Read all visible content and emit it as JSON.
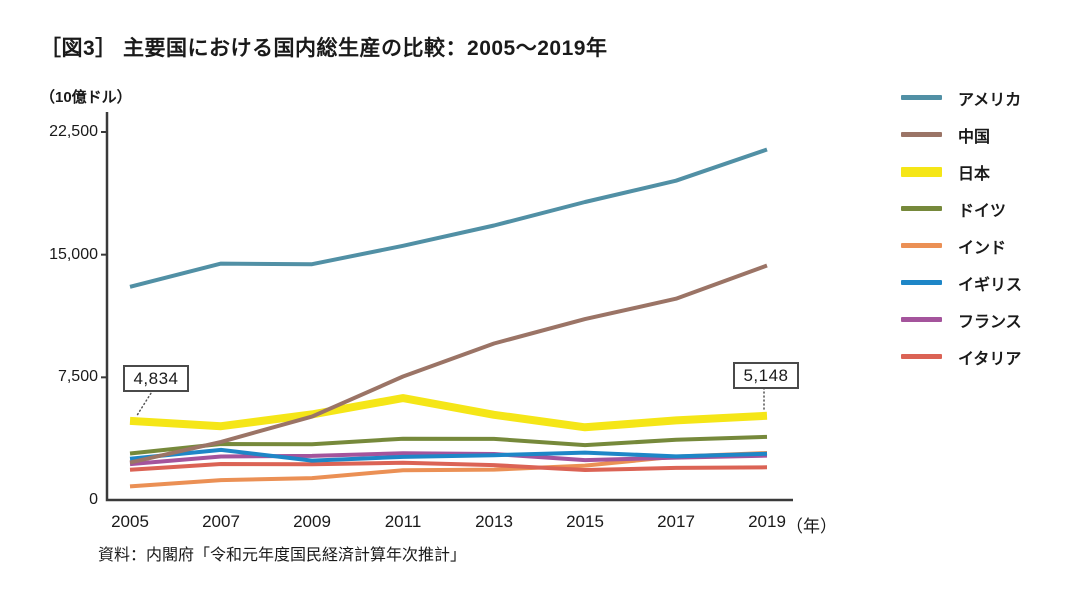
{
  "title": "［図3］ 主要国における国内総生産の比較：2005～2019年",
  "unit_label": "（10億ドル）",
  "source": "資料：内閣府「令和元年度国民経済計算年次推計」",
  "x_axis_suffix": "（年）",
  "y_tick_labels": [
    "22,500",
    "15,000",
    "7,500",
    "0"
  ],
  "annotations": {
    "start": {
      "value": "4,834"
    },
    "end": {
      "value": "5,148"
    }
  },
  "colors": {
    "axis": "#3a3a3a",
    "annotation_border": "#4a4a4a",
    "connector": "#555555"
  },
  "chart_data": {
    "type": "line",
    "title": "主要国における国内総生産の比較：2005～2019年",
    "xlabel": "年",
    "ylabel": "10億ドル",
    "x": [
      2005,
      2007,
      2009,
      2011,
      2013,
      2015,
      2017,
      2019
    ],
    "ylim": [
      0,
      22500
    ],
    "y_tick_values": [
      22500,
      15000,
      7500,
      0
    ],
    "grid": false,
    "legend_position": "right",
    "series": [
      {
        "name": "アメリカ",
        "color": "#5190A5",
        "values": [
          13037,
          14452,
          14418,
          15543,
          16785,
          18219,
          19522,
          21433
        ]
      },
      {
        "name": "中国",
        "color": "#9B7466",
        "values": [
          2286,
          3552,
          5102,
          7549,
          9571,
          11062,
          12310,
          14340
        ]
      },
      {
        "name": "日本",
        "color": "#F5E617",
        "values": [
          4834,
          4515,
          5231,
          6233,
          5212,
          4445,
          4867,
          5148
        ]
      },
      {
        "name": "ドイツ",
        "color": "#76893B",
        "values": [
          2846,
          3425,
          3411,
          3749,
          3734,
          3358,
          3682,
          3861
        ]
      },
      {
        "name": "インド",
        "color": "#EB9055",
        "values": [
          834,
          1217,
          1342,
          1823,
          1857,
          2104,
          2651,
          2871
        ]
      },
      {
        "name": "イギリス",
        "color": "#1E86C7",
        "values": [
          2525,
          3065,
          2412,
          2635,
          2740,
          2897,
          2666,
          2830
        ]
      },
      {
        "name": "フランス",
        "color": "#A4549C",
        "values": [
          2196,
          2657,
          2694,
          2861,
          2811,
          2438,
          2595,
          2716
        ]
      },
      {
        "name": "イタリア",
        "color": "#DB6355",
        "values": [
          1853,
          2203,
          2185,
          2276,
          2131,
          1836,
          1961,
          2001
        ]
      }
    ],
    "point_annotations": [
      {
        "series": "日本",
        "x": 2005,
        "value": 4834,
        "label": "4,834"
      },
      {
        "series": "日本",
        "x": 2019,
        "value": 5148,
        "label": "5,148"
      }
    ]
  }
}
